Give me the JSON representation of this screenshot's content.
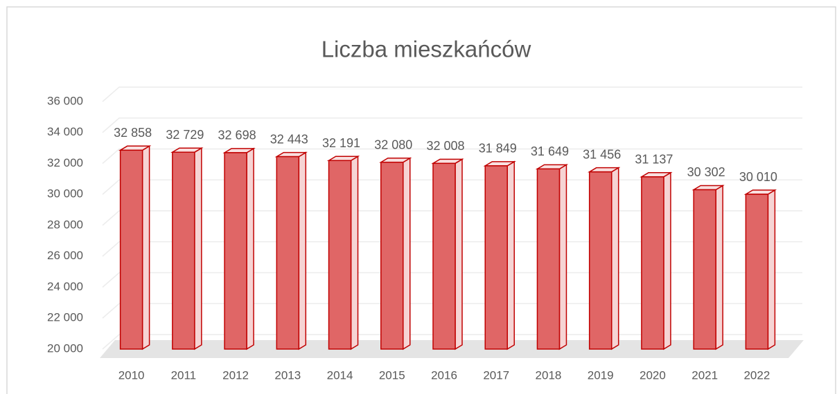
{
  "chart_data": {
    "type": "bar3d",
    "title": "Liczba mieszkańców",
    "categories": [
      "2010",
      "2011",
      "2012",
      "2013",
      "2014",
      "2015",
      "2016",
      "2017",
      "2018",
      "2019",
      "2020",
      "2021",
      "2022"
    ],
    "values": [
      32858,
      32729,
      32698,
      32443,
      32191,
      32080,
      32008,
      31849,
      31649,
      31456,
      31137,
      30302,
      30010
    ],
    "value_labels": [
      "32 858",
      "32 729",
      "32 698",
      "32 443",
      "32 191",
      "32 080",
      "32 008",
      "31 849",
      "31 649",
      "31 456",
      "31 137",
      "30 302",
      "30 010"
    ],
    "color": "#e06666",
    "ylim": [
      20000,
      36000
    ],
    "yticks": [
      {
        "value": 20000,
        "label": "20 000"
      },
      {
        "value": 22000,
        "label": "22 000"
      },
      {
        "value": 24000,
        "label": "24 000"
      },
      {
        "value": 26000,
        "label": "26 000"
      },
      {
        "value": 28000,
        "label": "28 000"
      },
      {
        "value": 30000,
        "label": "30 000"
      },
      {
        "value": 32000,
        "label": "32 000"
      },
      {
        "value": 34000,
        "label": "34 000"
      },
      {
        "value": 36000,
        "label": "36 000"
      }
    ],
    "grid": true
  }
}
